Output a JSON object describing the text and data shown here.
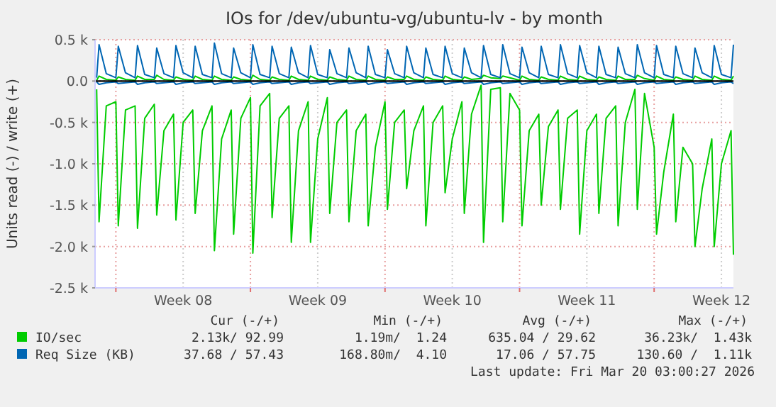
{
  "chart_data": {
    "type": "line",
    "title": "IOs for /dev/ubuntu-vg/ubuntu-lv - by month",
    "ylabel": "Units read (-) / write (+)",
    "xlim": [
      "2026-02-14T22:00",
      "2026-03-20T03:00"
    ],
    "xticks": [
      {
        "value": "2026-02-16",
        "label": null
      },
      {
        "value": "2026-02-19T12:00",
        "label": "Week 08"
      },
      {
        "value": "2026-02-23",
        "label": null
      },
      {
        "value": "2026-02-26T12:00",
        "label": "Week 09"
      },
      {
        "value": "2026-03-02",
        "label": null
      },
      {
        "value": "2026-03-05T12:00",
        "label": "Week 10"
      },
      {
        "value": "2026-03-09",
        "label": null
      },
      {
        "value": "2026-03-12T12:00",
        "label": "Week 11"
      },
      {
        "value": "2026-03-16",
        "label": null
      },
      {
        "value": "2026-03-19T12:00",
        "label": "Week 12"
      }
    ],
    "ylim": [
      -2500,
      500
    ],
    "yticks": [
      {
        "value": 500,
        "label": "0.5 k"
      },
      {
        "value": 0,
        "label": "0.0"
      },
      {
        "value": -500,
        "label": "-0.5 k"
      },
      {
        "value": -1000,
        "label": "-1.0 k"
      },
      {
        "value": -1500,
        "label": "-1.5 k"
      },
      {
        "value": -2000,
        "label": "-2.0 k"
      },
      {
        "value": -2500,
        "label": "-2.5 k"
      }
    ],
    "grid": true,
    "legend": "bottom",
    "line_style": "solid",
    "x": [
      "2026-02-15T00:00",
      "2026-02-15T03:00",
      "2026-02-15T12:00",
      "2026-02-16T00:00",
      "2026-02-16T03:00",
      "2026-02-16T12:00",
      "2026-02-17T00:00",
      "2026-02-17T03:00",
      "2026-02-17T12:00",
      "2026-02-18T00:00",
      "2026-02-18T03:00",
      "2026-02-18T12:00",
      "2026-02-19T00:00",
      "2026-02-19T03:00",
      "2026-02-19T12:00",
      "2026-02-20T00:00",
      "2026-02-20T03:00",
      "2026-02-20T12:00",
      "2026-02-21T00:00",
      "2026-02-21T03:00",
      "2026-02-21T12:00",
      "2026-02-22T00:00",
      "2026-02-22T03:00",
      "2026-02-22T12:00",
      "2026-02-23T00:00",
      "2026-02-23T03:00",
      "2026-02-23T12:00",
      "2026-02-24T00:00",
      "2026-02-24T03:00",
      "2026-02-24T12:00",
      "2026-02-25T00:00",
      "2026-02-25T03:00",
      "2026-02-25T12:00",
      "2026-02-26T00:00",
      "2026-02-26T03:00",
      "2026-02-26T12:00",
      "2026-02-27T00:00",
      "2026-02-27T03:00",
      "2026-02-27T12:00",
      "2026-02-28T00:00",
      "2026-02-28T03:00",
      "2026-02-28T12:00",
      "2026-03-01T00:00",
      "2026-03-01T03:00",
      "2026-03-01T12:00",
      "2026-03-02T00:00",
      "2026-03-02T03:00",
      "2026-03-02T12:00",
      "2026-03-03T00:00",
      "2026-03-03T03:00",
      "2026-03-03T12:00",
      "2026-03-04T00:00",
      "2026-03-04T03:00",
      "2026-03-04T12:00",
      "2026-03-05T00:00",
      "2026-03-05T03:00",
      "2026-03-05T12:00",
      "2026-03-06T00:00",
      "2026-03-06T03:00",
      "2026-03-06T12:00",
      "2026-03-07T00:00",
      "2026-03-07T03:00",
      "2026-03-07T12:00",
      "2026-03-08T00:00",
      "2026-03-08T03:00",
      "2026-03-08T12:00",
      "2026-03-09T00:00",
      "2026-03-09T03:00",
      "2026-03-09T12:00",
      "2026-03-10T00:00",
      "2026-03-10T03:00",
      "2026-03-10T12:00",
      "2026-03-11T00:00",
      "2026-03-11T03:00",
      "2026-03-11T12:00",
      "2026-03-12T00:00",
      "2026-03-12T03:00",
      "2026-03-12T12:00",
      "2026-03-13T00:00",
      "2026-03-13T03:00",
      "2026-03-13T12:00",
      "2026-03-14T00:00",
      "2026-03-14T03:00",
      "2026-03-14T12:00",
      "2026-03-15T00:00",
      "2026-03-15T03:00",
      "2026-03-15T12:00",
      "2026-03-16T00:00",
      "2026-03-16T03:00",
      "2026-03-16T12:00",
      "2026-03-17T00:00",
      "2026-03-17T03:00",
      "2026-03-17T12:00",
      "2026-03-18T00:00",
      "2026-03-18T03:00",
      "2026-03-18T12:00",
      "2026-03-19T00:00",
      "2026-03-19T03:00",
      "2026-03-19T12:00",
      "2026-03-20T00:00",
      "2026-03-20T03:00"
    ],
    "series": [
      {
        "name": "IO/sec",
        "color": "#00cc00",
        "values": [
          -100,
          -1700,
          -300,
          -250,
          -1750,
          -350,
          -300,
          -1780,
          -450,
          -280,
          -1620,
          -600,
          -400,
          -1680,
          -500,
          -350,
          -1600,
          -600,
          -300,
          -2050,
          -700,
          -350,
          -1850,
          -450,
          -200,
          -2080,
          -300,
          -150,
          -1650,
          -450,
          -300,
          -1950,
          -600,
          -250,
          -1950,
          -700,
          -200,
          -1600,
          -500,
          -350,
          -1700,
          -600,
          -400,
          -1750,
          -800,
          -250,
          -1550,
          -500,
          -350,
          -1300,
          -600,
          -300,
          -1750,
          -500,
          -300,
          -1350,
          -700,
          -250,
          -1600,
          -400,
          -50,
          -1950,
          -100,
          -80,
          -1700,
          -150,
          -350,
          -1750,
          -600,
          -400,
          -1500,
          -550,
          -350,
          -1550,
          -450,
          -350,
          -1850,
          -600,
          -400,
          -1600,
          -450,
          -300,
          -1750,
          -500,
          -100,
          -1550,
          -150,
          -800,
          -1850,
          -1100,
          -400,
          -1700,
          -800,
          -1000,
          -2000,
          -1300,
          -700,
          -2000,
          -1000,
          -600,
          -2100
        ]
      },
      {
        "color": "#00cc00",
        "values": [
          10,
          60,
          20,
          10,
          50,
          20,
          10,
          60,
          20,
          20,
          70,
          20,
          10,
          50,
          20,
          10,
          60,
          20,
          10,
          60,
          20,
          10,
          50,
          20,
          10,
          70,
          20,
          10,
          50,
          20,
          10,
          60,
          20,
          10,
          60,
          20,
          10,
          50,
          20,
          10,
          60,
          20,
          10,
          60,
          20,
          10,
          50,
          20,
          20,
          60,
          20,
          10,
          50,
          20,
          10,
          60,
          20,
          10,
          50,
          20,
          30,
          70,
          40,
          30,
          60,
          40,
          10,
          60,
          20,
          10,
          50,
          20,
          10,
          60,
          20,
          10,
          60,
          20,
          10,
          50,
          20,
          10,
          60,
          20,
          20,
          70,
          30,
          10,
          60,
          20,
          10,
          50,
          20,
          10,
          60,
          20,
          10,
          60,
          20,
          10,
          60
        ]
      },
      {
        "name": "Req Size (KB)",
        "color": "#0066b3",
        "values": [
          40,
          440,
          90,
          40,
          420,
          100,
          40,
          430,
          80,
          40,
          400,
          90,
          40,
          430,
          100,
          40,
          420,
          80,
          40,
          460,
          90,
          40,
          400,
          100,
          40,
          440,
          80,
          40,
          420,
          90,
          40,
          410,
          100,
          40,
          430,
          80,
          40,
          380,
          90,
          40,
          400,
          100,
          40,
          420,
          80,
          40,
          380,
          90,
          40,
          420,
          100,
          40,
          400,
          80,
          40,
          420,
          90,
          40,
          400,
          100,
          40,
          430,
          80,
          40,
          440,
          90,
          40,
          410,
          100,
          40,
          420,
          80,
          40,
          440,
          90,
          40,
          430,
          100,
          40,
          420,
          80,
          40,
          410,
          90,
          40,
          440,
          100,
          40,
          430,
          80,
          40,
          420,
          90,
          40,
          400,
          100,
          40,
          430,
          80,
          40,
          440
        ]
      },
      {
        "color": "#0066b3",
        "values": [
          -10,
          -40,
          -20,
          -10,
          -30,
          -20,
          -10,
          -40,
          -20,
          -10,
          -30,
          -20,
          -10,
          -40,
          -20,
          -10,
          -30,
          -20,
          -10,
          -40,
          -20,
          -10,
          -30,
          -20,
          -10,
          -40,
          -20,
          -10,
          -30,
          -20,
          -10,
          -40,
          -20,
          -10,
          -30,
          -20,
          -10,
          -40,
          -20,
          -10,
          -30,
          -20,
          -10,
          -40,
          -20,
          -10,
          -30,
          -20,
          -10,
          -40,
          -20,
          -10,
          -30,
          -20,
          -10,
          -40,
          -20,
          -10,
          -30,
          -20,
          -10,
          -40,
          -20,
          -10,
          -30,
          -20,
          -10,
          -40,
          -20,
          -10,
          -30,
          -20,
          -10,
          -40,
          -20,
          -10,
          -30,
          -20,
          -10,
          -40,
          -20,
          -10,
          -30,
          -20,
          -10,
          -40,
          -20,
          -10,
          -30,
          -20,
          -10,
          -40,
          -20,
          -10,
          -30,
          -20,
          -10,
          -40,
          -20,
          -10,
          -30
        ]
      }
    ],
    "annotations": [
      "Cur (-/+)",
      "Min (-/+)",
      "Avg (-/+)",
      "Max (-/+)",
      "2.13k/ 92.99",
      "1.19m/  1.24",
      "635.04 / 29.62",
      "36.23k/  1.43k",
      "37.68 / 57.43",
      "168.80m/  4.10",
      "17.06 / 57.75",
      "130.60 /  1.11k",
      "Last update: Fri Mar 20 03:00:27 2026"
    ]
  }
}
